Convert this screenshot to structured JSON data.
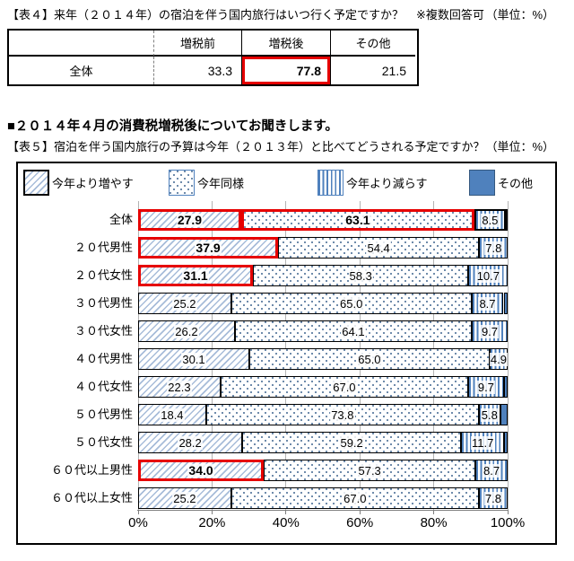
{
  "table4": {
    "title": "【表４】来年（２０１４年）の宿泊を伴う国内旅行はいつ行く予定ですか？",
    "note": "※複数回答可",
    "unit": "（単位：%）",
    "headers": [
      "増税前",
      "増税後",
      "その他"
    ],
    "row_label": "全体",
    "values": [
      "33.3",
      "77.8",
      "21.5"
    ],
    "highlighted_value": "77.8"
  },
  "section_heading": "■２０１４年４月の消費税増税後についてお聞きします。",
  "table5": {
    "title": "【表５】宿泊を伴う国内旅行の予算は今年（２０１３年）と比べてどうされる予定ですか？",
    "unit": "（単位：%）"
  },
  "chart_data": {
    "type": "bar",
    "stacked": true,
    "orientation": "horizontal",
    "legend": [
      "今年より増やす",
      "今年同様",
      "今年より減らす",
      "その他"
    ],
    "legend_position": "top",
    "categories": [
      "全体",
      "２０代男性",
      "２０代女性",
      "３０代男性",
      "３０代女性",
      "４０代男性",
      "４０代女性",
      "５０代男性",
      "５０代女性",
      "６０代以上男性",
      "６０代以上女性"
    ],
    "series": [
      {
        "name": "今年より増やす",
        "values": [
          27.9,
          37.9,
          31.1,
          25.2,
          26.2,
          30.1,
          22.3,
          18.4,
          28.2,
          34.0,
          25.2
        ]
      },
      {
        "name": "今年同様",
        "values": [
          63.1,
          54.4,
          58.3,
          65.0,
          64.1,
          65.0,
          67.0,
          73.8,
          59.2,
          57.3,
          67.0
        ]
      },
      {
        "name": "今年より減らす",
        "values": [
          8.5,
          7.8,
          10.7,
          8.7,
          9.7,
          4.9,
          9.7,
          5.8,
          11.7,
          8.7,
          7.8
        ]
      },
      {
        "name": "その他",
        "values": [
          0.5,
          0,
          0,
          1.1,
          0,
          0,
          1.0,
          2.0,
          0.9,
          0,
          0
        ]
      }
    ],
    "x_ticks": [
      "0%",
      "20%",
      "40%",
      "60%",
      "80%",
      "100%"
    ],
    "xlim": [
      0,
      100
    ],
    "grid": true,
    "value_labels_hidden_for_series": "その他",
    "highlight_red_segments": [
      [
        0,
        0
      ],
      [
        0,
        1
      ],
      [
        1,
        0
      ],
      [
        2,
        0
      ],
      [
        9,
        0
      ]
    ],
    "bold_value_segments": [
      [
        0,
        0
      ],
      [
        0,
        1
      ],
      [
        1,
        0
      ],
      [
        2,
        0
      ],
      [
        9,
        0
      ]
    ],
    "black_emphasis_segments": [
      [
        0,
        2
      ]
    ]
  },
  "colors": {
    "highlight_red": "#e60000",
    "bar_blue": "#4f81bd",
    "hatch_blue": "#a7bcd9",
    "grid_gray": "#b3b3b3"
  }
}
